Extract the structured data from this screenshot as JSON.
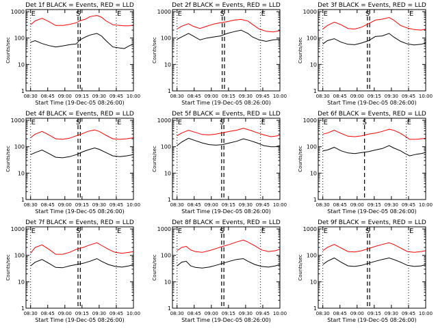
{
  "figure": {
    "xlabel": "Start Time (19-Dec-05 08:26:00)",
    "ylabel": "Counts/sec",
    "xticks": [
      "08:30",
      "08:45",
      "09:00",
      "09:15",
      "09:30",
      "09:45",
      "10:00"
    ],
    "yticks": [
      "1",
      "10",
      "100",
      "1000"
    ],
    "y_scale": "log",
    "ylim": [
      1,
      1200
    ],
    "xlim_minutes": [
      0,
      94
    ],
    "marker_labels": {
      "E": "E",
      "S": "S"
    },
    "colors": {
      "events": "#000000",
      "lld": "#ff0000",
      "axes": "#000000",
      "background": "#ffffff"
    }
  },
  "chart_data": [
    {
      "type": "line",
      "title": "Det 1f BLACK = Events, RED = LLD",
      "markers": {
        "E_start": 4,
        "S_dashed": [
          45.5,
          47.5
        ],
        "E_end": 79
      },
      "series": [
        {
          "name": "Events",
          "x": [
            4,
            8,
            14,
            20,
            26,
            32,
            38,
            44,
            47,
            52,
            56,
            62,
            66,
            70,
            76,
            82,
            86,
            90,
            94
          ],
          "y": [
            70,
            80,
            62,
            52,
            46,
            50,
            56,
            60,
            85,
            110,
            130,
            150,
            120,
            80,
            46,
            42,
            40,
            50,
            60
          ]
        },
        {
          "name": "LLD",
          "x": [
            4,
            8,
            14,
            20,
            26,
            32,
            38,
            44,
            47,
            52,
            56,
            62,
            66,
            70,
            76,
            82,
            86,
            90,
            94
          ],
          "y": [
            320,
            450,
            560,
            420,
            300,
            300,
            330,
            380,
            450,
            520,
            650,
            720,
            620,
            450,
            320,
            300,
            290,
            290,
            310
          ]
        }
      ]
    },
    {
      "type": "line",
      "title": "Det 2f BLACK = Events, RED = LLD",
      "markers": {
        "E_start": 4,
        "S_dashed": [
          43.5,
          45.5
        ],
        "E_end": 77
      },
      "series": [
        {
          "name": "Events",
          "x": [
            4,
            8,
            14,
            18,
            24,
            30,
            36,
            42,
            48,
            54,
            60,
            66,
            70,
            76,
            82,
            88,
            94
          ],
          "y": [
            90,
            110,
            150,
            120,
            85,
            100,
            110,
            120,
            150,
            175,
            200,
            150,
            110,
            85,
            75,
            85,
            90
          ]
        },
        {
          "name": "LLD",
          "x": [
            4,
            8,
            14,
            18,
            24,
            30,
            36,
            42,
            48,
            54,
            60,
            66,
            70,
            76,
            82,
            88,
            94
          ],
          "y": [
            220,
            280,
            350,
            280,
            230,
            280,
            340,
            380,
            420,
            480,
            510,
            440,
            330,
            220,
            180,
            170,
            190
          ]
        }
      ]
    },
    {
      "type": "line",
      "title": "Det 3f BLACK = Events, RED = LLD",
      "markers": {
        "E_start": 4,
        "S_dashed": [
          43,
          45
        ],
        "E_end": 79
      },
      "series": [
        {
          "name": "Events",
          "x": [
            4,
            8,
            14,
            20,
            26,
            32,
            38,
            44,
            50,
            56,
            62,
            66,
            72,
            78,
            84,
            90,
            94
          ],
          "y": [
            60,
            80,
            95,
            70,
            58,
            56,
            65,
            80,
            115,
            120,
            150,
            110,
            75,
            60,
            55,
            58,
            65
          ]
        },
        {
          "name": "LLD",
          "x": [
            4,
            8,
            14,
            20,
            26,
            32,
            38,
            44,
            50,
            56,
            62,
            66,
            72,
            78,
            84,
            90,
            94
          ],
          "y": [
            220,
            300,
            400,
            320,
            230,
            220,
            260,
            350,
            480,
            520,
            600,
            480,
            300,
            240,
            210,
            200,
            220
          ]
        }
      ]
    },
    {
      "type": "line",
      "title": "Det 4f BLACK = Events, RED = LLD",
      "markers": {
        "E_start": 4,
        "S_dashed": [
          45.5,
          47.5
        ],
        "E_end": 79
      },
      "series": [
        {
          "name": "Events",
          "x": [
            4,
            8,
            14,
            20,
            26,
            32,
            38,
            44,
            50,
            54,
            60,
            64,
            70,
            76,
            82,
            88,
            94
          ],
          "y": [
            50,
            60,
            75,
            55,
            40,
            38,
            42,
            50,
            65,
            75,
            90,
            80,
            60,
            45,
            42,
            45,
            50
          ]
        },
        {
          "name": "LLD",
          "x": [
            4,
            8,
            14,
            20,
            26,
            32,
            38,
            44,
            50,
            54,
            60,
            64,
            70,
            76,
            82,
            88,
            94
          ],
          "y": [
            220,
            300,
            380,
            280,
            200,
            190,
            210,
            260,
            320,
            380,
            430,
            380,
            270,
            200,
            190,
            200,
            220
          ]
        }
      ]
    },
    {
      "type": "line",
      "title": "Det 5f BLACK = Events, RED = LLD",
      "markers": {
        "E_start": 4,
        "S_dashed": [
          43,
          45
        ],
        "E_end": 77
      },
      "series": [
        {
          "name": "Events",
          "x": [
            4,
            8,
            14,
            20,
            26,
            32,
            38,
            44,
            50,
            56,
            62,
            68,
            74,
            80,
            86,
            90,
            94
          ],
          "y": [
            110,
            150,
            210,
            170,
            140,
            120,
            115,
            120,
            140,
            160,
            200,
            170,
            140,
            110,
            100,
            100,
            110
          ]
        },
        {
          "name": "LLD",
          "x": [
            4,
            8,
            14,
            20,
            26,
            32,
            38,
            44,
            50,
            56,
            62,
            68,
            74,
            80,
            86,
            90,
            94
          ],
          "y": [
            260,
            330,
            420,
            350,
            290,
            280,
            300,
            340,
            380,
            420,
            500,
            420,
            340,
            280,
            240,
            250,
            270
          ]
        }
      ]
    },
    {
      "type": "line",
      "title": "Det 6f BLACK = Events, RED = LLD",
      "markers": {
        "E_start": 4,
        "S_dashed": [
          40.5
        ],
        "E_end": 77
      },
      "series": [
        {
          "name": "Events",
          "x": [
            4,
            8,
            14,
            20,
            26,
            32,
            38,
            44,
            50,
            56,
            62,
            66,
            72,
            76,
            80,
            86,
            90,
            94
          ],
          "y": [
            70,
            75,
            95,
            70,
            58,
            55,
            60,
            65,
            75,
            85,
            110,
            90,
            70,
            55,
            45,
            52,
            55,
            60
          ]
        },
        {
          "name": "LLD",
          "x": [
            4,
            8,
            14,
            20,
            26,
            32,
            38,
            44,
            50,
            56,
            62,
            66,
            72,
            76,
            80,
            86,
            90,
            94
          ],
          "y": [
            300,
            330,
            420,
            320,
            250,
            240,
            260,
            300,
            330,
            380,
            460,
            420,
            320,
            250,
            190,
            190,
            200,
            210
          ]
        }
      ]
    },
    {
      "type": "line",
      "title": "Det 7f BLACK = Events, RED = LLD",
      "markers": {
        "E_start": 4,
        "S_dashed": [
          45.5,
          47.5
        ],
        "E_end": 79
      },
      "series": [
        {
          "name": "Events",
          "x": [
            4,
            8,
            14,
            20,
            26,
            32,
            38,
            44,
            50,
            56,
            62,
            66,
            72,
            78,
            84,
            90,
            94
          ],
          "y": [
            40,
            55,
            70,
            50,
            35,
            34,
            40,
            45,
            50,
            60,
            75,
            60,
            45,
            38,
            36,
            40,
            45
          ]
        },
        {
          "name": "LLD",
          "x": [
            4,
            8,
            14,
            20,
            26,
            32,
            38,
            44,
            50,
            56,
            62,
            66,
            72,
            78,
            84,
            90,
            94
          ],
          "y": [
            120,
            200,
            250,
            170,
            110,
            110,
            130,
            170,
            200,
            250,
            300,
            240,
            170,
            130,
            120,
            130,
            140
          ]
        }
      ]
    },
    {
      "type": "line",
      "title": "Det 8f BLACK = Events, RED = LLD",
      "markers": {
        "E_start": 4,
        "S_dashed": [
          43,
          45
        ],
        "E_end": 77
      },
      "series": [
        {
          "name": "Events",
          "x": [
            4,
            8,
            12,
            16,
            20,
            26,
            32,
            38,
            44,
            50,
            56,
            62,
            66,
            72,
            78,
            84,
            90,
            94
          ],
          "y": [
            40,
            55,
            60,
            40,
            35,
            33,
            36,
            42,
            50,
            60,
            70,
            75,
            60,
            45,
            38,
            36,
            40,
            45
          ]
        },
        {
          "name": "LLD",
          "x": [
            4,
            8,
            12,
            16,
            20,
            26,
            32,
            38,
            44,
            50,
            56,
            62,
            66,
            72,
            78,
            84,
            90,
            94
          ],
          "y": [
            150,
            200,
            220,
            160,
            140,
            130,
            150,
            180,
            220,
            260,
            320,
            380,
            320,
            230,
            160,
            140,
            150,
            170
          ]
        }
      ]
    },
    {
      "type": "line",
      "title": "Det 9f BLACK = Events, RED = LLD",
      "markers": {
        "E_start": 4,
        "S_dashed": [
          43,
          45
        ],
        "E_end": 79
      },
      "series": [
        {
          "name": "Events",
          "x": [
            4,
            8,
            14,
            20,
            26,
            32,
            38,
            44,
            50,
            56,
            62,
            66,
            72,
            78,
            84,
            90,
            94
          ],
          "y": [
            45,
            60,
            80,
            55,
            40,
            38,
            42,
            50,
            60,
            70,
            80,
            70,
            55,
            42,
            38,
            40,
            45
          ]
        },
        {
          "name": "LLD",
          "x": [
            4,
            8,
            14,
            20,
            26,
            32,
            38,
            44,
            50,
            56,
            62,
            66,
            72,
            78,
            84,
            90,
            94
          ],
          "y": [
            150,
            200,
            260,
            190,
            140,
            135,
            150,
            180,
            220,
            260,
            300,
            260,
            190,
            140,
            130,
            140,
            150
          ]
        }
      ]
    }
  ]
}
